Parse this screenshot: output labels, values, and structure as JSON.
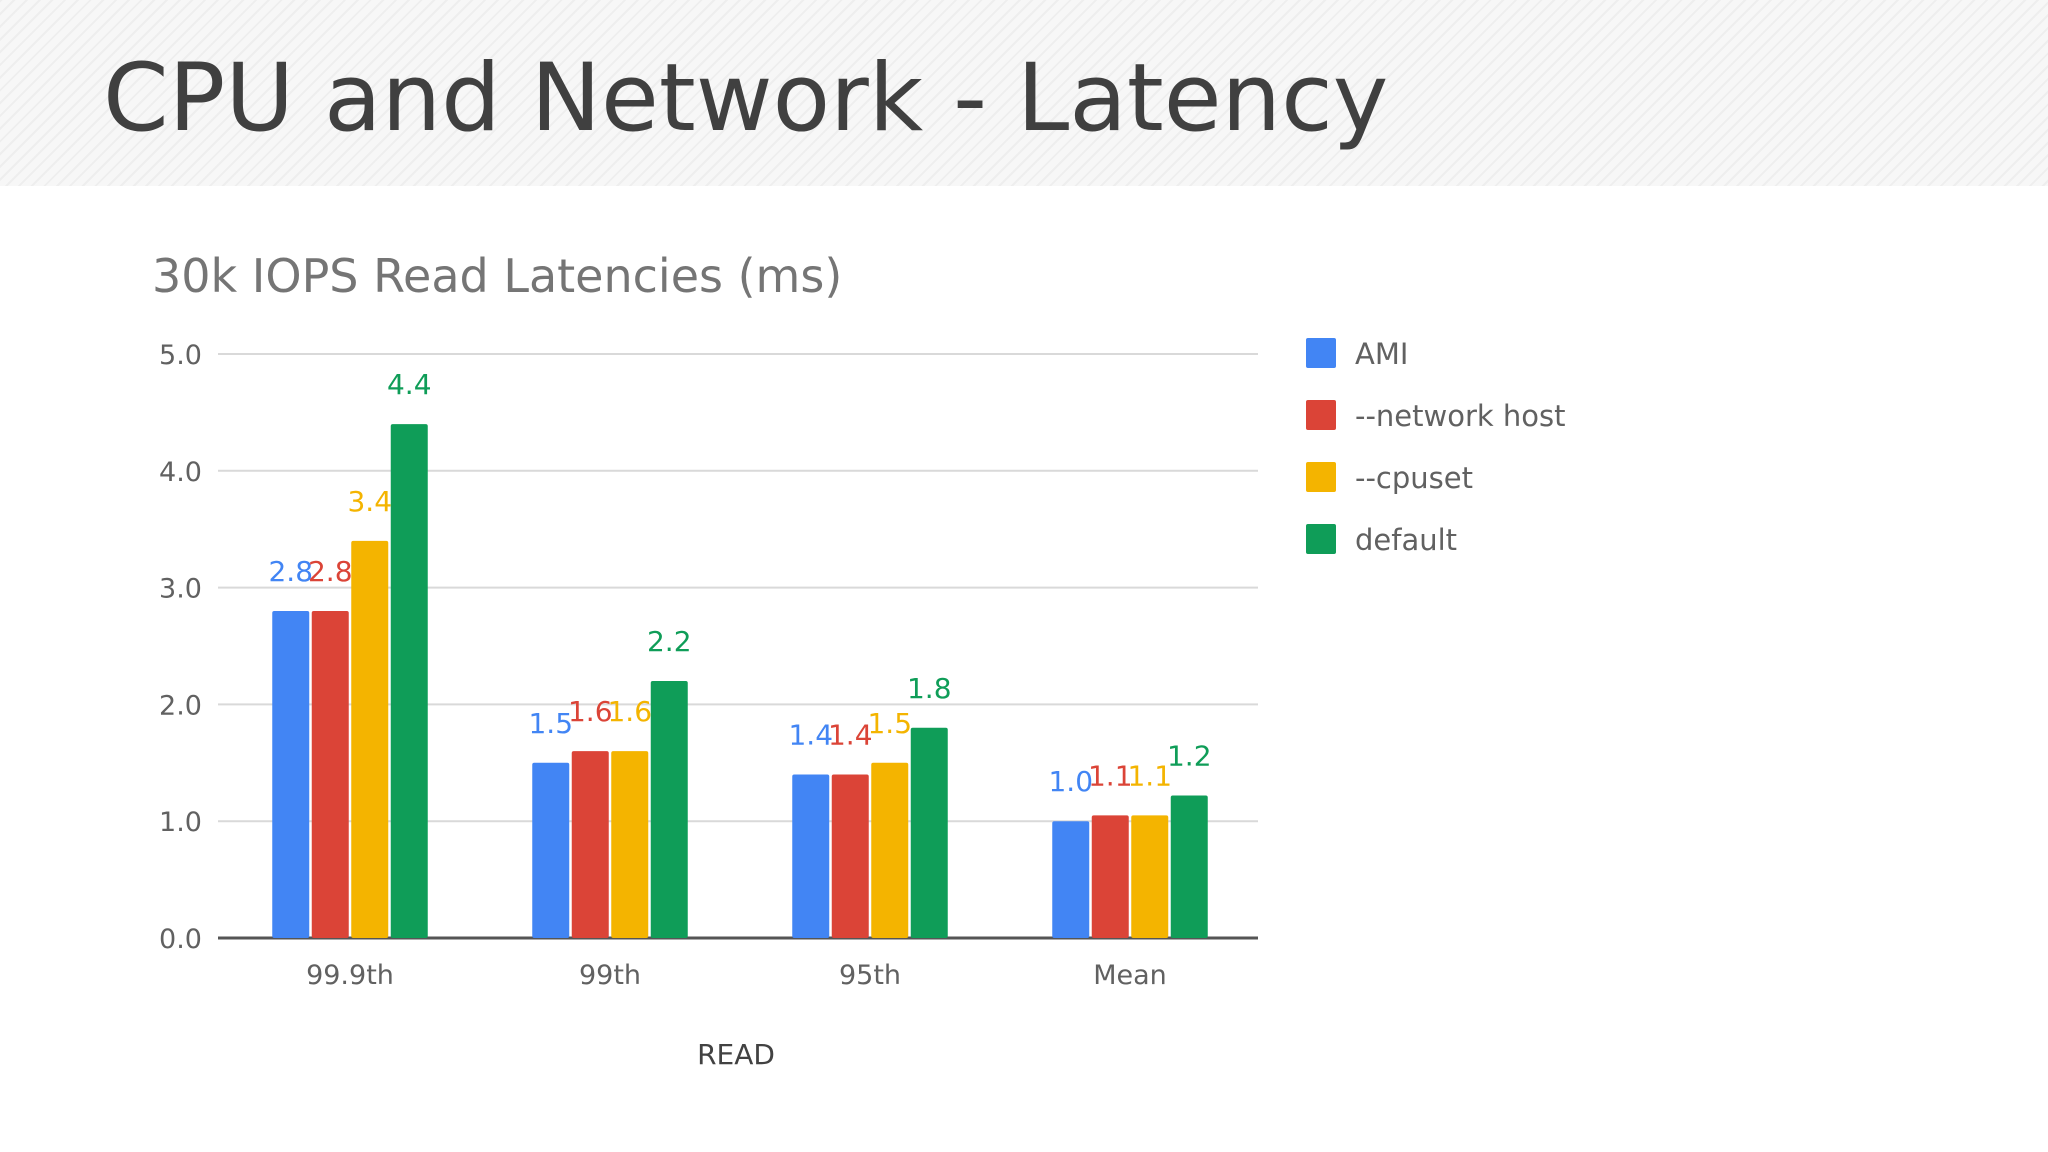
{
  "slide": {
    "title": "CPU and Network - Latency"
  },
  "chart_data": {
    "type": "bar",
    "title": "30k IOPS Read Latencies (ms)",
    "xlabel": "READ",
    "ylabel": "",
    "categories": [
      "99.9th",
      "99th",
      "95th",
      "Mean"
    ],
    "ylim": [
      0,
      5
    ],
    "yticks": [
      "0.0",
      "1.0",
      "2.0",
      "3.0",
      "4.0",
      "5.0"
    ],
    "grid": true,
    "legend_position": "right",
    "series": [
      {
        "name": "AMI",
        "color": "#4285f4",
        "values": [
          2.8,
          1.5,
          1.4,
          1.0
        ],
        "labels": [
          "2.8",
          "1.5",
          "1.4",
          "1.0"
        ]
      },
      {
        "name": "--network host",
        "color": "#db4437",
        "values": [
          2.8,
          1.6,
          1.4,
          1.05
        ],
        "labels": [
          "2.8",
          "1.6",
          "1.4",
          "1.1"
        ]
      },
      {
        "name": "--cpuset",
        "color": "#f4b400",
        "values": [
          3.4,
          1.6,
          1.5,
          1.05
        ],
        "labels": [
          "3.4",
          "1.6",
          "1.5",
          "1.1"
        ]
      },
      {
        "name": "default",
        "color": "#0f9d58",
        "values": [
          4.4,
          2.2,
          1.8,
          1.22
        ],
        "labels": [
          "4.4",
          "2.2",
          "1.8",
          "1.2"
        ]
      }
    ]
  }
}
